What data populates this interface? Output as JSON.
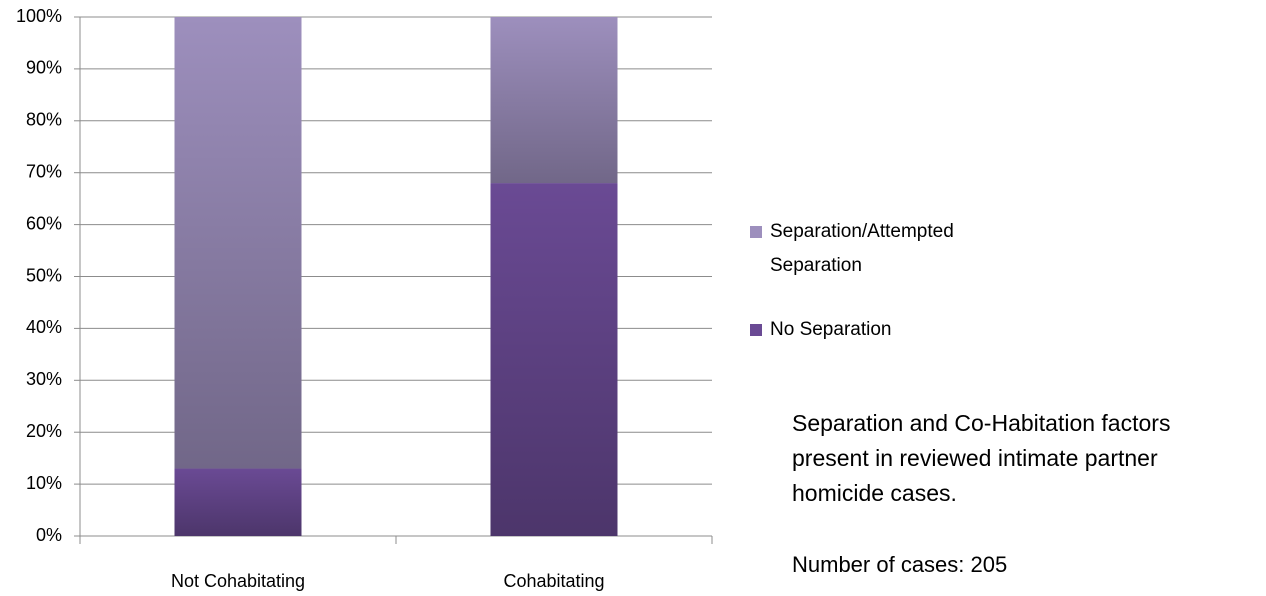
{
  "chart_data": {
    "type": "stacked_bar",
    "categories": [
      "Not Cohabitating",
      "Cohabitating"
    ],
    "series": [
      {
        "name": "No Separation",
        "color": "#6a4a94",
        "values": [
          13,
          68
        ]
      },
      {
        "name": "Separation/Attempted Separation",
        "color": "#9d8fbd",
        "values": [
          87,
          32
        ]
      }
    ],
    "ylim": [
      0,
      100
    ],
    "yticks": [
      {
        "value": 0,
        "label": "0%"
      },
      {
        "value": 10,
        "label": "10%"
      },
      {
        "value": 20,
        "label": "20%"
      },
      {
        "value": 30,
        "label": "30%"
      },
      {
        "value": 40,
        "label": "40%"
      },
      {
        "value": 50,
        "label": "50%"
      },
      {
        "value": 60,
        "label": "60%"
      },
      {
        "value": 70,
        "label": "70%"
      },
      {
        "value": 80,
        "label": "80%"
      },
      {
        "value": 90,
        "label": "90%"
      },
      {
        "value": 100,
        "label": "100%"
      }
    ],
    "grid": true,
    "legend": "right",
    "annotations": [
      "Separation and Co-Habitation factors present in reviewed intimate partner homicide cases.",
      "Number of cases: 205"
    ]
  }
}
